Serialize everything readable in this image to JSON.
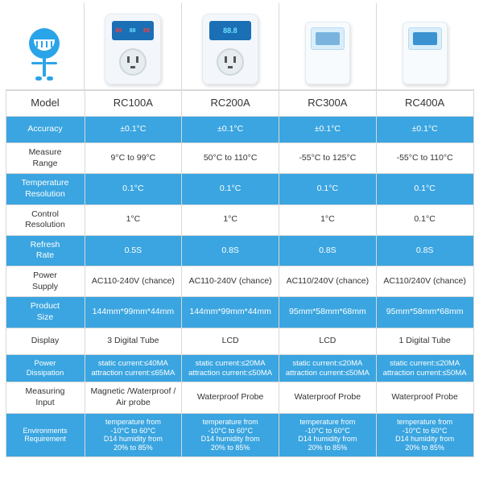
{
  "colors": {
    "blue_row_bg": "#3aa5e0",
    "blue_row_text": "#ffffff",
    "white_row_bg": "#ffffff",
    "white_row_text": "#333333",
    "border": "#d8d8d8",
    "mascot": "#2aa4e8"
  },
  "columns": [
    "RC100A",
    "RC200A",
    "RC300A",
    "RC400A"
  ],
  "label_header": "Model",
  "rows": [
    {
      "label": "Accuracy",
      "style": "blue",
      "cells": [
        "±0.1°C",
        "±0.1°C",
        "±0.1°C",
        "±0.1°C"
      ]
    },
    {
      "label": "Measure Range",
      "style": "white",
      "cells": [
        "9°C to 99°C",
        "50°C to 110°C",
        "-55°C to 125°C",
        "-55°C to 110°C"
      ]
    },
    {
      "label": "Temperature Resolution",
      "style": "blue",
      "cells": [
        "0.1°C",
        "0.1°C",
        "0.1°C",
        "0.1°C"
      ]
    },
    {
      "label": "Control Resolution",
      "style": "white",
      "cells": [
        "1°C",
        "1°C",
        "1°C",
        "0.1°C"
      ]
    },
    {
      "label": "Refresh Rate",
      "style": "blue",
      "cells": [
        "0.5S",
        "0.8S",
        "0.8S",
        "0.8S"
      ]
    },
    {
      "label": "Power Supply",
      "style": "white",
      "cells": [
        "AC110-240V (chance)",
        "AC110-240V (chance)",
        "AC110/240V (chance)",
        "AC110/240V (chance)"
      ]
    },
    {
      "label": "Product Size",
      "style": "blue",
      "cells": [
        "144mm*99mm*44mm",
        "144mm*99mm*44mm",
        "95mm*58mm*68mm",
        "95mm*58mm*68mm"
      ]
    },
    {
      "label": "Display",
      "style": "white",
      "cells": [
        "3 Digital Tube",
        "LCD",
        "LCD",
        "1 Digital Tube"
      ]
    },
    {
      "label": "Power Dissipation",
      "style": "blue",
      "multi": true,
      "cells": [
        "static current:≤40MA\nattraction current:≤65MA",
        "static current:≤20MA\nattraction current:≤50MA",
        "static current:≤20MA\nattraction current:≤50MA",
        "static current:≤20MA\nattraction current:≤50MA"
      ]
    },
    {
      "label": "Measuring Input",
      "style": "white",
      "cells": [
        "Magnetic /Waterproof / Air probe",
        "Waterproof Probe",
        "Waterproof Probe",
        "Waterproof Probe"
      ]
    },
    {
      "label": "Environments Requirement",
      "style": "blue",
      "multi": true,
      "xs": true,
      "cells": [
        "temperature from\n-10°C to 60°C\nD14 humidity from\n20% to 85%",
        "temperature from\n-10°C to 60°C\nD14 humidity from\n20% to 85%",
        "temperature from\n-10°C to 60°C\nD14 humidity from\n20% to 85%",
        "temperature from\n-10°C to 60°C\nD14 humidity from\n20% to 85%"
      ]
    }
  ]
}
